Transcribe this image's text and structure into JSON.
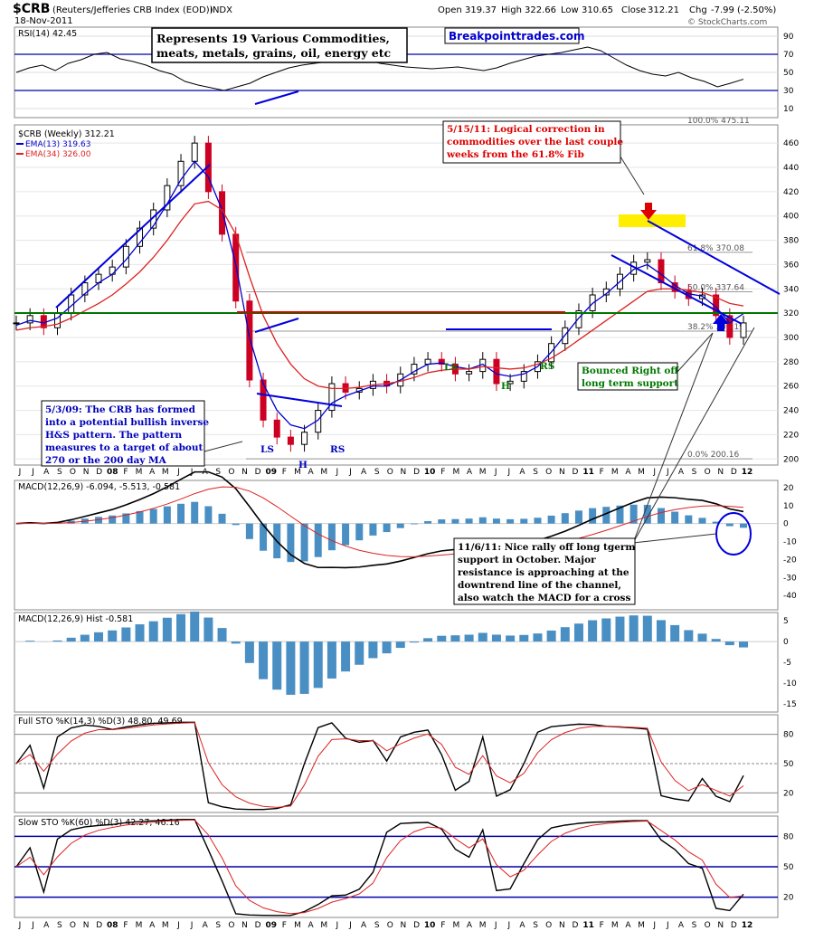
{
  "header": {
    "symbol": "$CRB",
    "name": "(Reuters/Jefferies CRB Index (EOD))",
    "exchange": "INDX",
    "date": "18-Nov-2011",
    "open_label": "Open",
    "open": "319.37",
    "high_label": "High",
    "high": "322.66",
    "low_label": "Low",
    "low": "310.65",
    "close_label": "Close",
    "close": "312.21",
    "chg_label": "Chg",
    "chg": "-7.99 (-2.50%)",
    "brand": "© StockCharts.com",
    "watermark": "Breakpointtrades.com"
  },
  "colors": {
    "up": "#000000",
    "down": "#cc0022",
    "ema13": "#0000cc",
    "ema34": "#dd2222",
    "hist": "#4a8fc4",
    "trend": "#0000dd",
    "support": "#007700",
    "resistance_red": "#dd0000",
    "fib_highlight": "#ffee00",
    "annotation_red": "#dd0000",
    "annotation_green": "#007700",
    "annotation_blue": "#0000bb"
  },
  "panels": {
    "rsi": {
      "label": "RSI(14) 42.45",
      "levels": [
        90,
        70,
        50,
        30,
        10
      ],
      "value": 42.45,
      "series_points": [
        50,
        55,
        58,
        52,
        60,
        64,
        70,
        72,
        65,
        62,
        58,
        52,
        48,
        40,
        36,
        33,
        30,
        34,
        38,
        45,
        50,
        55,
        58,
        60,
        62,
        64,
        66,
        64,
        60,
        58,
        56,
        55,
        54,
        55,
        56,
        54,
        52,
        55,
        60,
        64,
        68,
        70,
        72,
        75,
        78,
        74,
        66,
        58,
        52,
        48,
        46,
        50,
        44,
        40,
        34,
        38,
        42.45
      ]
    },
    "price": {
      "label": "$CRB (Weekly) 312.21",
      "ema13_label": "EMA(13) 319.63",
      "ema34_label": "EMA(34) 326.00",
      "y_ticks": [
        460,
        440,
        420,
        400,
        380,
        360,
        340,
        320,
        300,
        280,
        260,
        240,
        220,
        200
      ],
      "ylim": [
        195,
        475
      ],
      "fib_labels": [
        {
          "label": "100.0% 475.11",
          "value": 475.11
        },
        {
          "label": "61.8% 370.08",
          "value": 370.08
        },
        {
          "label": "50.0% 337.64",
          "value": 337.64
        },
        {
          "label": "38.2% 305.19",
          "value": 305.19
        },
        {
          "label": "0.0% 200.16",
          "value": 200.16
        }
      ]
    },
    "macd": {
      "label": "MACD(12,26,9) -6.094, -5.513, -0.581",
      "y_ticks": [
        20,
        10,
        0,
        -10,
        -20,
        -30,
        -40
      ],
      "ylim": [
        -48,
        24
      ]
    },
    "hist": {
      "label": "MACD(12,26,9) Hist -0.581",
      "y_ticks": [
        5,
        0,
        -5,
        -10,
        -15
      ],
      "ylim": [
        -17,
        7
      ]
    },
    "fsto": {
      "label": "Full STO %K(14,3) %D(3) 48.80, 49.69",
      "y_ticks": [
        80,
        50,
        20
      ],
      "ylim": [
        0,
        100
      ]
    },
    "ssto": {
      "label": "Slow STO %K(60) %D(3) 42.27, 46.16",
      "y_ticks": [
        80,
        50,
        20
      ],
      "ylim": [
        0,
        100
      ]
    }
  },
  "x_axis": {
    "months_top": [
      "J",
      "J",
      "A",
      "S",
      "O",
      "N",
      "D",
      "08",
      "F",
      "M",
      "A",
      "M",
      "J",
      "J",
      "A",
      "S",
      "O",
      "N",
      "D",
      "09",
      "F",
      "M",
      "A",
      "M",
      "J",
      "J",
      "A",
      "S",
      "O",
      "N",
      "D",
      "10",
      "F",
      "M",
      "A",
      "M",
      "J",
      "J",
      "A",
      "S",
      "O",
      "N",
      "D",
      "11",
      "F",
      "M",
      "A",
      "M",
      "J",
      "J",
      "A",
      "S",
      "O",
      "N",
      "D",
      "12"
    ],
    "months_bottom": [
      "J",
      "J",
      "A",
      "S",
      "O",
      "N",
      "D",
      "08",
      "F",
      "M",
      "A",
      "M",
      "J",
      "J",
      "A",
      "S",
      "O",
      "N",
      "D",
      "09",
      "F",
      "M",
      "A",
      "M",
      "J",
      "J",
      "A",
      "S",
      "O",
      "N",
      "D",
      "10",
      "F",
      "M",
      "A",
      "M",
      "J",
      "J",
      "A",
      "S",
      "O",
      "N",
      "D",
      "11",
      "F",
      "M",
      "A",
      "M",
      "J",
      "J",
      "A",
      "S",
      "O",
      "N",
      "D",
      "12"
    ]
  },
  "annotations": {
    "commodities": "Represents 19 Various Commodities, meats, metals, grains, oil, energy etc",
    "commodities_line1": "Represents 19 Various Commodities,",
    "commodities_line2": "meats, metals, grains, oil, energy etc",
    "may_line1": "5/15/11: Logical correction in",
    "may_line2": "commodities over the last couple",
    "may_line3": "weeks from the 61.8% Fib",
    "hs_line1": "5/3/09: The CRB has formed",
    "hs_line2": "into a potential bullish inverse",
    "hs_line3": "H&S pattern.  The pattern",
    "hs_line4": "measures to a target of about",
    "hs_line5": "270 or the 200 day MA",
    "bounce_line1": "Bounced Right off",
    "bounce_line2": "long term support",
    "nov_line1": "11/6/11: Nice rally off long tgerm",
    "nov_line2": "support in October.  Major",
    "nov_line3": "resistance is approaching at the",
    "nov_line4": "downtrend line of the channel,",
    "nov_line5": "also watch the MACD for a cross",
    "ls1": "LS",
    "h1": "H",
    "rs1": "RS",
    "ls2": "LS",
    "h2": "H",
    "rs2": "RS"
  },
  "chart_data": {
    "type": "line",
    "title": "$CRB (Reuters/Jefferies CRB Index (EOD)) Weekly",
    "x": [
      "2007-06",
      "2007-07",
      "2007-08",
      "2007-09",
      "2007-10",
      "2007-11",
      "2007-12",
      "2008-01",
      "2008-02",
      "2008-03",
      "2008-04",
      "2008-05",
      "2008-06",
      "2008-07",
      "2008-08",
      "2008-09",
      "2008-10",
      "2008-11",
      "2008-12",
      "2009-01",
      "2009-02",
      "2009-03",
      "2009-04",
      "2009-05",
      "2009-06",
      "2009-07",
      "2009-08",
      "2009-09",
      "2009-10",
      "2009-11",
      "2009-12",
      "2010-01",
      "2010-02",
      "2010-03",
      "2010-04",
      "2010-05",
      "2010-06",
      "2010-07",
      "2010-08",
      "2010-09",
      "2010-10",
      "2010-11",
      "2010-12",
      "2011-01",
      "2011-02",
      "2011-03",
      "2011-04",
      "2011-05",
      "2011-06",
      "2011-07",
      "2011-08",
      "2011-09",
      "2011-10",
      "2011-11"
    ],
    "series": [
      {
        "name": "$CRB",
        "values": [
          312,
          318,
          308,
          320,
          335,
          345,
          352,
          358,
          375,
          390,
          405,
          425,
          445,
          460,
          420,
          385,
          330,
          265,
          232,
          218,
          212,
          222,
          240,
          262,
          255,
          258,
          264,
          260,
          270,
          278,
          282,
          278,
          270,
          272,
          282,
          262,
          264,
          272,
          280,
          295,
          308,
          322,
          335,
          340,
          352,
          362,
          364,
          345,
          338,
          332,
          335,
          318,
          300,
          312
        ]
      },
      {
        "name": "EMA(13)",
        "values": [
          310,
          314,
          312,
          316,
          326,
          336,
          345,
          352,
          364,
          378,
          392,
          410,
          430,
          445,
          432,
          405,
          360,
          300,
          262,
          240,
          228,
          225,
          232,
          246,
          252,
          256,
          260,
          260,
          265,
          272,
          278,
          279,
          276,
          274,
          278,
          270,
          268,
          270,
          276,
          288,
          302,
          316,
          328,
          336,
          346,
          356,
          360,
          352,
          343,
          336,
          334,
          325,
          312,
          319.63
        ]
      },
      {
        "name": "EMA(34)",
        "values": [
          306,
          308,
          309,
          311,
          316,
          322,
          328,
          335,
          344,
          354,
          366,
          380,
          396,
          410,
          412,
          405,
          385,
          350,
          318,
          295,
          278,
          266,
          260,
          258,
          258,
          259,
          261,
          262,
          264,
          267,
          271,
          273,
          274,
          274,
          276,
          275,
          274,
          275,
          278,
          283,
          290,
          298,
          306,
          314,
          322,
          330,
          338,
          340,
          340,
          339,
          337,
          333,
          328,
          326.0
        ]
      }
    ],
    "xlabel": "",
    "ylabel": "",
    "ylim": [
      195,
      475
    ],
    "grid": true,
    "legend": "top-left"
  }
}
